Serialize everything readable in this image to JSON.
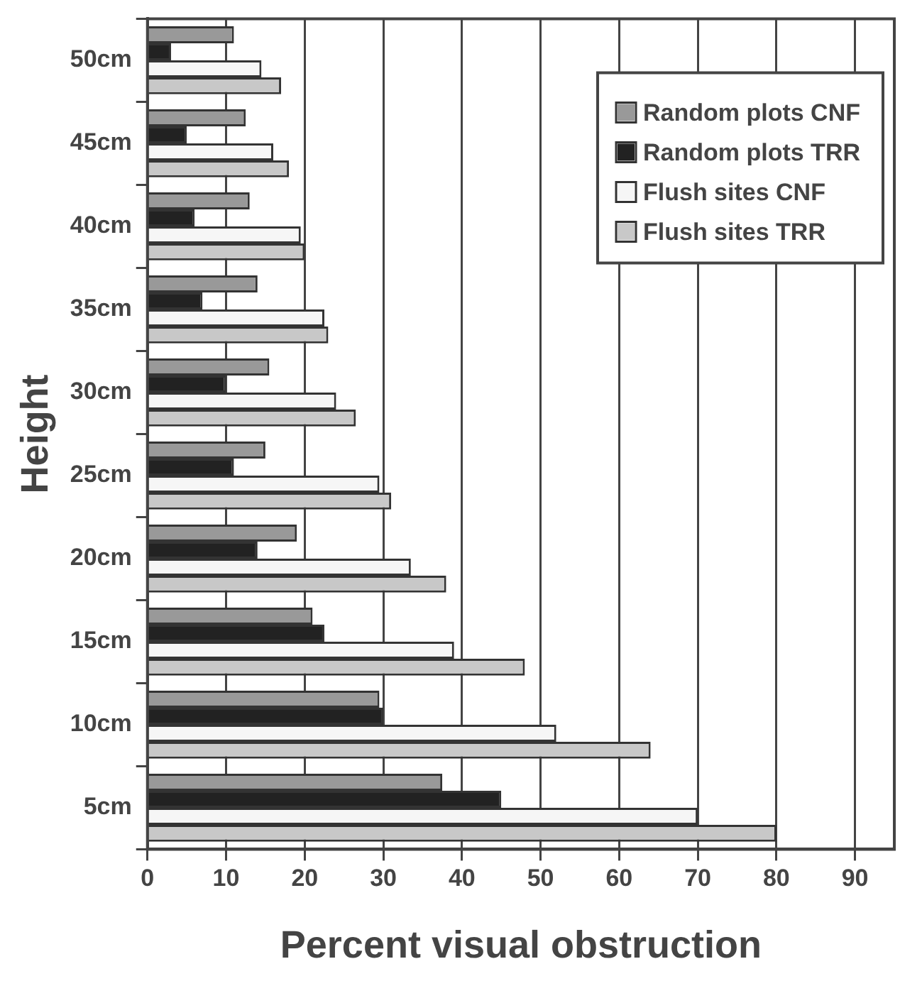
{
  "chart_data": {
    "type": "bar",
    "orientation": "horizontal",
    "xlabel": "Percent visual obstruction",
    "ylabel": "Height",
    "categories": [
      "50cm",
      "45cm",
      "40cm",
      "35cm",
      "30cm",
      "25cm",
      "20cm",
      "15cm",
      "10cm",
      "5cm"
    ],
    "series": [
      {
        "name": "Random plots CNF",
        "color": "#999999",
        "values": [
          11,
          12.5,
          13,
          14,
          15.5,
          15,
          19,
          21,
          29.5,
          37.5
        ]
      },
      {
        "name": "Random plots TRR",
        "color": "#222222",
        "values": [
          3,
          5,
          6,
          7,
          10,
          11,
          14,
          22.5,
          30,
          45
        ]
      },
      {
        "name": "Flush sites CNF",
        "color": "#f6f6f6",
        "values": [
          14.5,
          16,
          19.5,
          22.5,
          24,
          29.5,
          33.5,
          39,
          52,
          70
        ]
      },
      {
        "name": "Flush sites TRR",
        "color": "#c8c8c8",
        "values": [
          17,
          18,
          20,
          23,
          26.5,
          31,
          38,
          48,
          64,
          80
        ]
      }
    ],
    "xlim": [
      0,
      95
    ],
    "xticks": [
      0,
      10,
      20,
      30,
      40,
      50,
      60,
      70,
      80,
      90
    ],
    "grid": "x",
    "legend": "top right"
  }
}
